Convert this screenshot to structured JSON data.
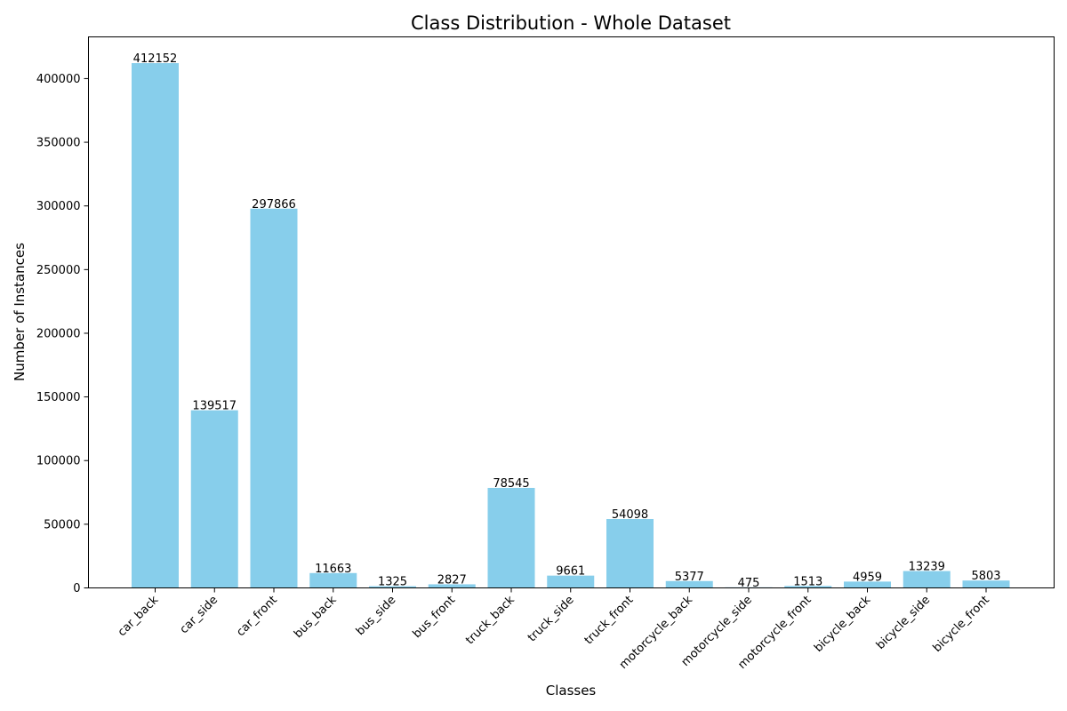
{
  "chart_data": {
    "type": "bar",
    "title": "Class Distribution - Whole Dataset",
    "xlabel": "Classes",
    "ylabel": "Number of Instances",
    "categories": [
      "car_back",
      "car_side",
      "car_front",
      "bus_back",
      "bus_side",
      "bus_front",
      "truck_back",
      "truck_side",
      "truck_front",
      "motorcycle_back",
      "motorcycle_side",
      "motorcycle_front",
      "bicycle_back",
      "bicycle_side",
      "bicycle_front"
    ],
    "values": [
      412152,
      139517,
      297866,
      11663,
      1325,
      2827,
      78545,
      9661,
      54098,
      5377,
      475,
      1513,
      4959,
      13239,
      5803
    ],
    "ylim": [
      0,
      432760
    ],
    "yticks": [
      0,
      50000,
      100000,
      150000,
      200000,
      250000,
      300000,
      350000,
      400000
    ],
    "grid": false,
    "bar_color": "#87ceeb",
    "data_labels": true
  }
}
